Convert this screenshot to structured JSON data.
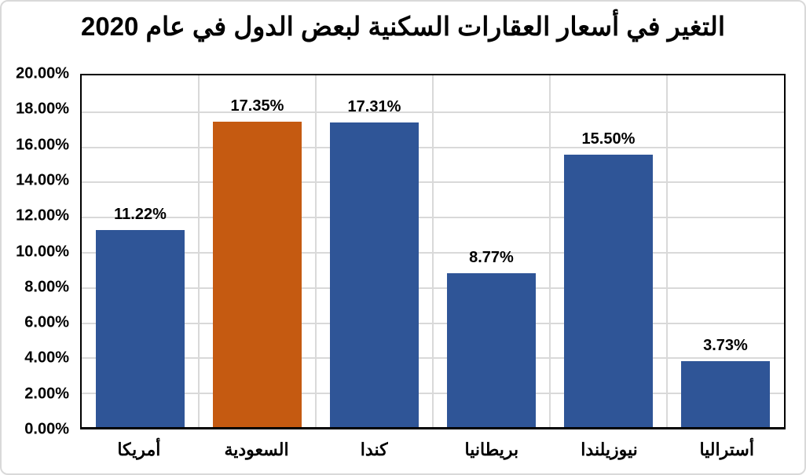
{
  "chart_data": {
    "type": "bar",
    "title": "التغير في أسعار العقارات السكنية لبعض الدول في عام 2020",
    "categories": [
      "أمريكا",
      "السعودية",
      "كندا",
      "بريطانيا",
      "نيوزيلندا",
      "أستراليا"
    ],
    "values": [
      11.22,
      17.35,
      17.31,
      8.77,
      15.5,
      3.73
    ],
    "data_labels": [
      "11.22%",
      "17.35%",
      "17.31%",
      "8.77%",
      "15.50%",
      "3.73%"
    ],
    "bar_colors": [
      "#2f5597",
      "#c55a11",
      "#2f5597",
      "#2f5597",
      "#2f5597",
      "#2f5597"
    ],
    "y_tick_labels_top_to_bottom": [
      "20.00%",
      "18.00%",
      "16.00%",
      "14.00%",
      "12.00%",
      "10.00%",
      "8.00%",
      "6.00%",
      "4.00%",
      "2.00%",
      "0.00%"
    ],
    "ylim": [
      0,
      20
    ],
    "xlabel": "",
    "ylabel": "",
    "grid": true,
    "legend": "none",
    "colors": {
      "bar_default": "#2f5597",
      "bar_highlight": "#c55a11",
      "gridline": "#d9d9d9",
      "plot_border": "#000000",
      "canvas_border": "#d9d9d9",
      "text": "#000000"
    }
  }
}
